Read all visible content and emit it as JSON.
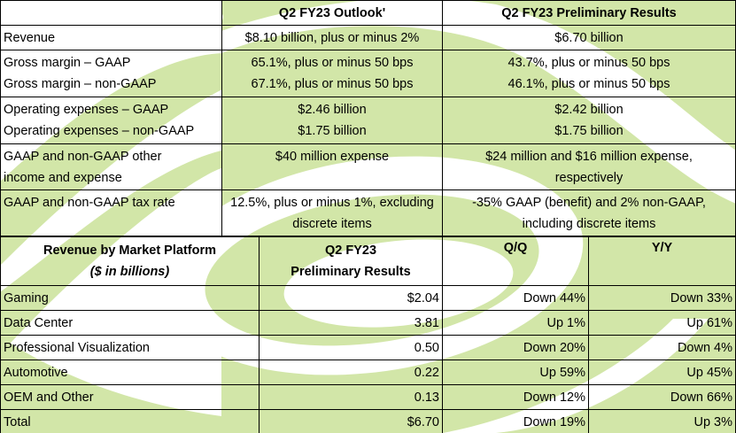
{
  "outlook_table": {
    "headers": [
      "",
      "Q2 FY23 Outlook'",
      "Q2 FY23 Preliminary Results"
    ],
    "rows": [
      {
        "label": [
          "Revenue"
        ],
        "outlook": [
          "$8.10 billion, plus or minus 2%"
        ],
        "results": [
          "$6.70 billion"
        ]
      },
      {
        "label": [
          "Gross margin – GAAP",
          "Gross margin – non-GAAP"
        ],
        "outlook": [
          "65.1%, plus or minus 50 bps",
          "67.1%, plus or minus 50 bps"
        ],
        "results": [
          "43.7%, plus or minus 50 bps",
          "46.1%, plus or minus 50 bps"
        ]
      },
      {
        "label": [
          "Operating expenses – GAAP",
          "Operating expenses – non-GAAP"
        ],
        "outlook": [
          "$2.46 billion",
          "$1.75 billion"
        ],
        "results": [
          "$2.42 billion",
          "$1.75 billion"
        ]
      },
      {
        "label": [
          "GAAP and non-GAAP other",
          "income and expense"
        ],
        "outlook": [
          "$40 million expense"
        ],
        "results": [
          "$24 million and $16 million expense,",
          "respectively"
        ]
      },
      {
        "label": [
          "GAAP and non-GAAP tax rate"
        ],
        "outlook": [
          "12.5%, plus or minus 1%, excluding",
          "discrete items"
        ],
        "results": [
          "-35% GAAP (benefit) and 2% non-GAAP,",
          "including discrete items"
        ]
      }
    ]
  },
  "platform_table": {
    "header": {
      "platform": "Revenue by Market Platform",
      "platform_sub": "($ in billions)",
      "results": "Q2 FY23",
      "results_sub": "Preliminary Results",
      "qq": "Q/Q",
      "yy": "Y/Y"
    },
    "rows": [
      {
        "platform": "Gaming",
        "value": "$2.04",
        "qq": "Down 44%",
        "yy": "Down 33%"
      },
      {
        "platform": "Data Center",
        "value": "3.81",
        "qq": "Up 1%",
        "yy": "Up 61%"
      },
      {
        "platform": "Professional Visualization",
        "value": "0.50",
        "qq": "Down 20%",
        "yy": "Down 4%"
      },
      {
        "platform": "Automotive",
        "value": "0.22",
        "qq": "Up 59%",
        "yy": "Up 45%"
      },
      {
        "platform": "OEM and Other",
        "value": "0.13",
        "qq": "Down 12%",
        "yy": "Down 66%"
      },
      {
        "platform": "Total",
        "value": "$6.70",
        "qq": "Down 19%",
        "yy": "Up 3%"
      }
    ]
  },
  "colors": {
    "accent_green": "#d2e6a8",
    "border": "#000000"
  }
}
